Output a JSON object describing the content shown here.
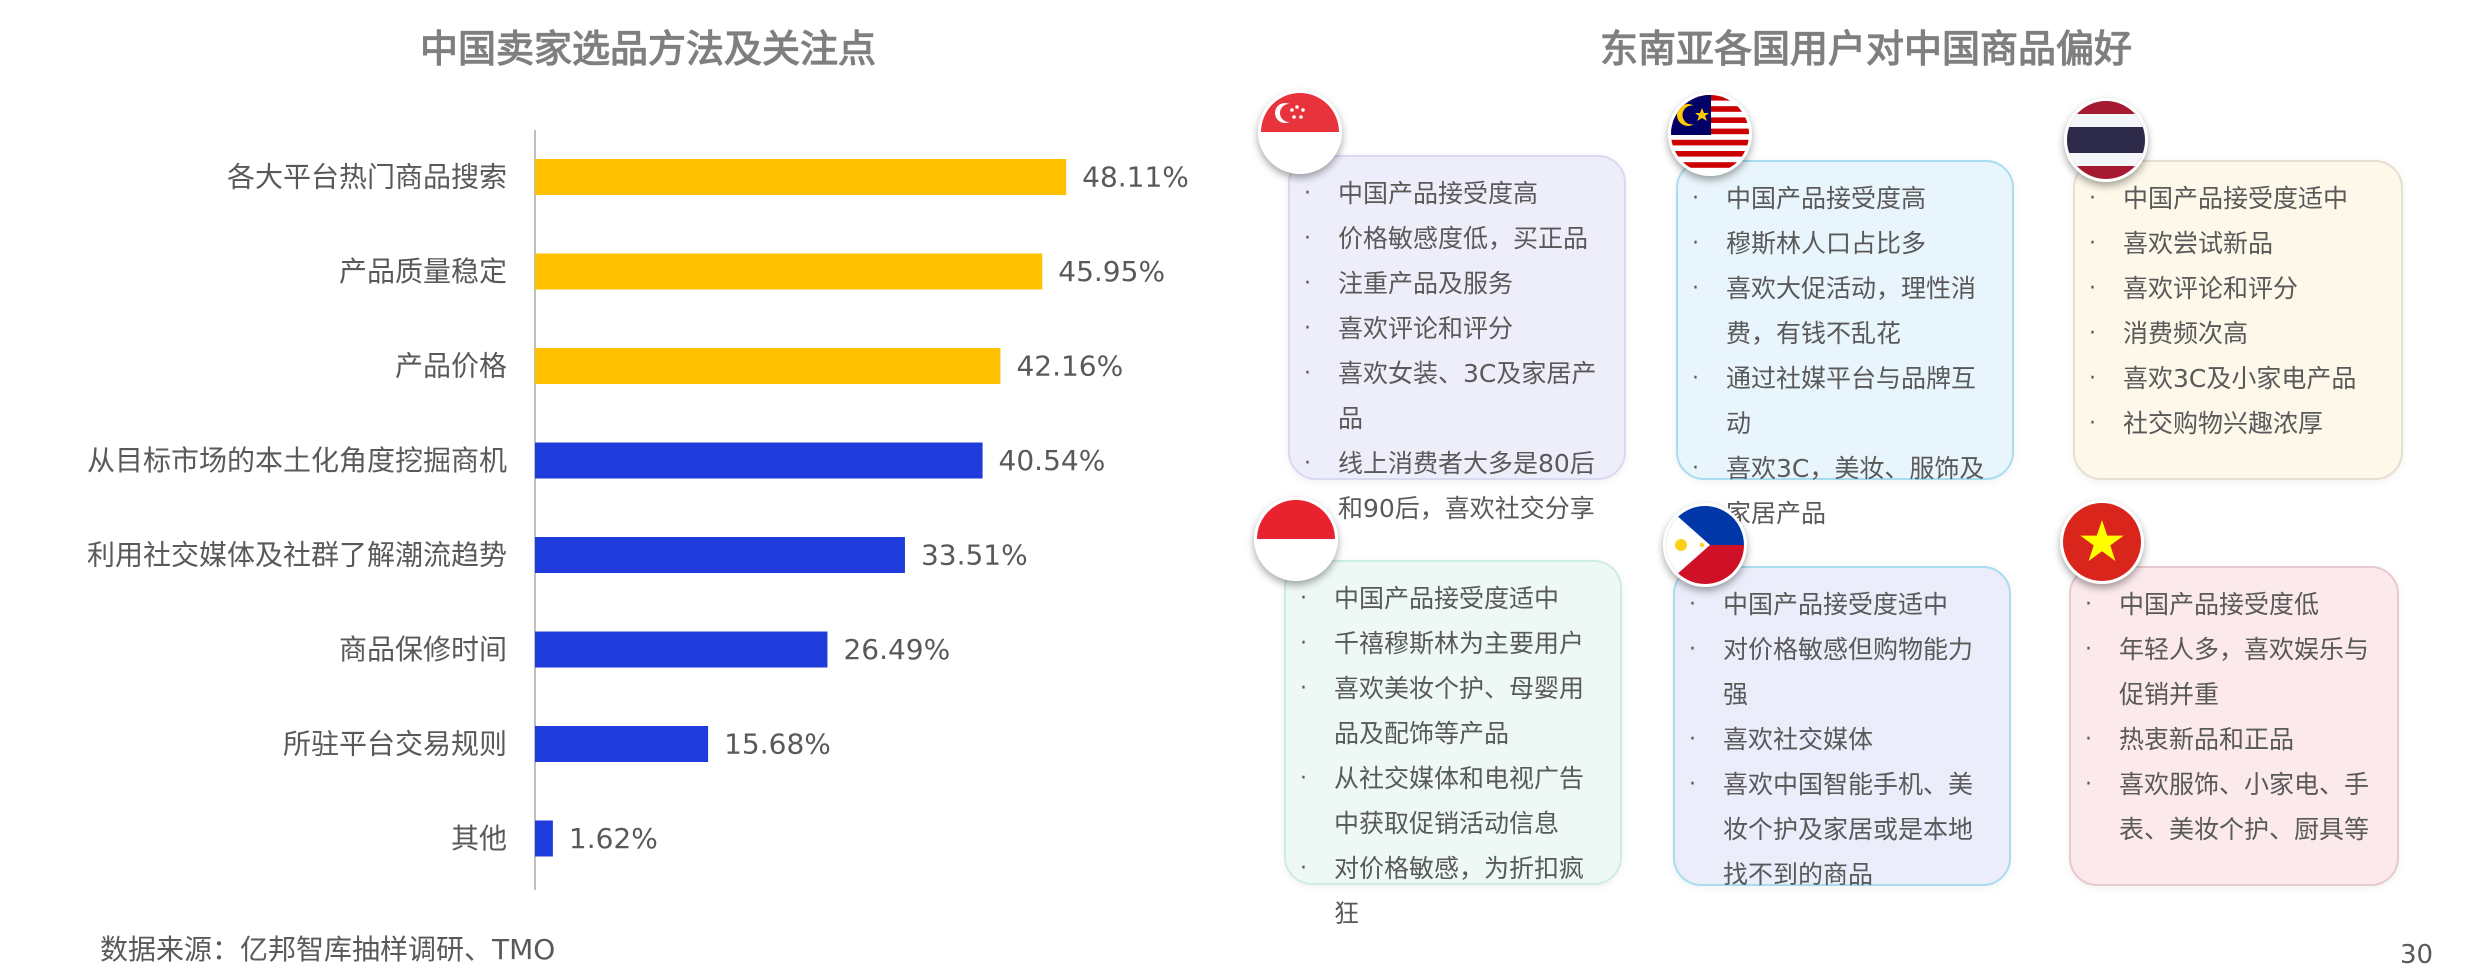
{
  "left_title": "中国卖家选品方法及关注点",
  "right_title": "东南亚各国用户对中国商品偏好",
  "source": "数据来源：亿邦智库抽样调研、TMO",
  "page_number": "30",
  "colors": {
    "highlight": "#FFC000",
    "bar": "#1F3BDB",
    "axis": "#BFBFBF"
  },
  "chart_data": {
    "type": "bar",
    "orientation": "horizontal",
    "categories": [
      "各大平台热门商品搜索",
      "产品质量稳定",
      "产品价格",
      "从目标市场的本土化角度挖掘商机",
      "利用社交媒体及社群了解潮流趋势",
      "商品保修时间",
      "所驻平台交易规则",
      "其他"
    ],
    "values": [
      48.11,
      45.95,
      42.16,
      40.54,
      33.51,
      26.49,
      15.68,
      1.62
    ],
    "value_labels": [
      "48.11%",
      "45.95%",
      "42.16%",
      "40.54%",
      "33.51%",
      "26.49%",
      "15.68%",
      "1.62%"
    ],
    "highlight_count": 3,
    "xlim": [
      0,
      52
    ]
  },
  "countries": [
    {
      "flag": "singapore-flag-icon",
      "bg": "#EEEEFB",
      "border": "#D9D9F2",
      "items": [
        "中国产品接受度高",
        "价格敏感度低，买正品",
        "注重产品及服务",
        "喜欢评论和评分",
        "喜欢女装、3C及家居产品",
        "线上消费者大多是80后和90后，喜欢社交分享"
      ]
    },
    {
      "flag": "malaysia-flag-icon",
      "bg": "#E9F5FC",
      "border": "#A8DDF0",
      "items": [
        "中国产品接受度高",
        "穆斯林人口占比多",
        "喜欢大促活动，理性消费，有钱不乱花",
        "通过社媒平台与品牌互动",
        "喜欢3C，美妆、服饰及家居产品"
      ]
    },
    {
      "flag": "thailand-flag-icon",
      "bg": "#FDF8EA",
      "border": "#E6E0CF",
      "items": [
        "中国产品接受度适中",
        "喜欢尝试新品",
        "喜欢评论和评分",
        "消费频次高",
        "喜欢3C及小家电产品",
        "社交购物兴趣浓厚"
      ]
    },
    {
      "flag": "indonesia-flag-icon",
      "bg": "#EEF9F6",
      "border": "#CDEDE4",
      "items": [
        "中国产品接受度适中",
        "千禧穆斯林为主要用户",
        "喜欢美妆个护、母婴用品及配饰等产品",
        "从社交媒体和电视广告中获取促销活动信息",
        "对价格敏感，为折扣疯狂"
      ]
    },
    {
      "flag": "philippines-flag-icon",
      "bg": "#EBEDFB",
      "border": "#A8DDF0",
      "items": [
        "中国产品接受度适中",
        "对价格敏感但购物能力强",
        "喜欢社交媒体",
        "喜欢中国智能手机、美妆个护及家居或是本地找不到的商品"
      ]
    },
    {
      "flag": "vietnam-flag-icon",
      "bg": "#FCE9EC",
      "border": "#E8C9CF",
      "items": [
        "中国产品接受度低",
        "年轻人多，喜欢娱乐与促销并重",
        "热衷新品和正品",
        "喜欢服饰、小家电、手表、美妆个护、厨具等"
      ]
    }
  ]
}
